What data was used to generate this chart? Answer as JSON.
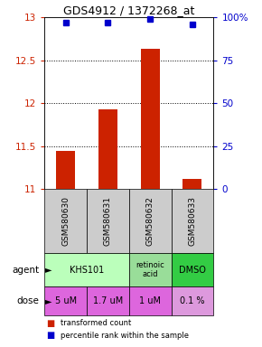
{
  "title": "GDS4912 / 1372268_at",
  "samples": [
    "GSM580630",
    "GSM580631",
    "GSM580632",
    "GSM580633"
  ],
  "bar_values": [
    11.44,
    11.93,
    12.63,
    11.12
  ],
  "percentile_values": [
    97,
    97,
    99,
    96
  ],
  "ylim_left": [
    11,
    13
  ],
  "ylim_right": [
    0,
    100
  ],
  "yticks_left": [
    11,
    11.5,
    12,
    12.5,
    13
  ],
  "yticks_right": [
    0,
    25,
    50,
    75,
    100
  ],
  "ytick_labels_right": [
    "0",
    "25",
    "50",
    "75",
    "100%"
  ],
  "bar_color": "#cc2200",
  "dot_color": "#0000cc",
  "dose_labels": [
    "5 uM",
    "1.7 uM",
    "1 uM",
    "0.1 %"
  ],
  "dose_color": "#dd66dd",
  "dose_last_color": "#cc88cc",
  "sample_bg_color": "#cccccc",
  "legend_bar_label": "transformed count",
  "legend_dot_label": "percentile rank within the sample",
  "agent_data": [
    {
      "label": "KHS101",
      "span": 2,
      "color": "#bbffbb"
    },
    {
      "label": "retinoic\nacid",
      "span": 1,
      "color": "#99dd99"
    },
    {
      "label": "DMSO",
      "span": 1,
      "color": "#33cc44"
    }
  ],
  "dose_colors": [
    "#dd66dd",
    "#dd66dd",
    "#dd66dd",
    "#dd99dd"
  ]
}
